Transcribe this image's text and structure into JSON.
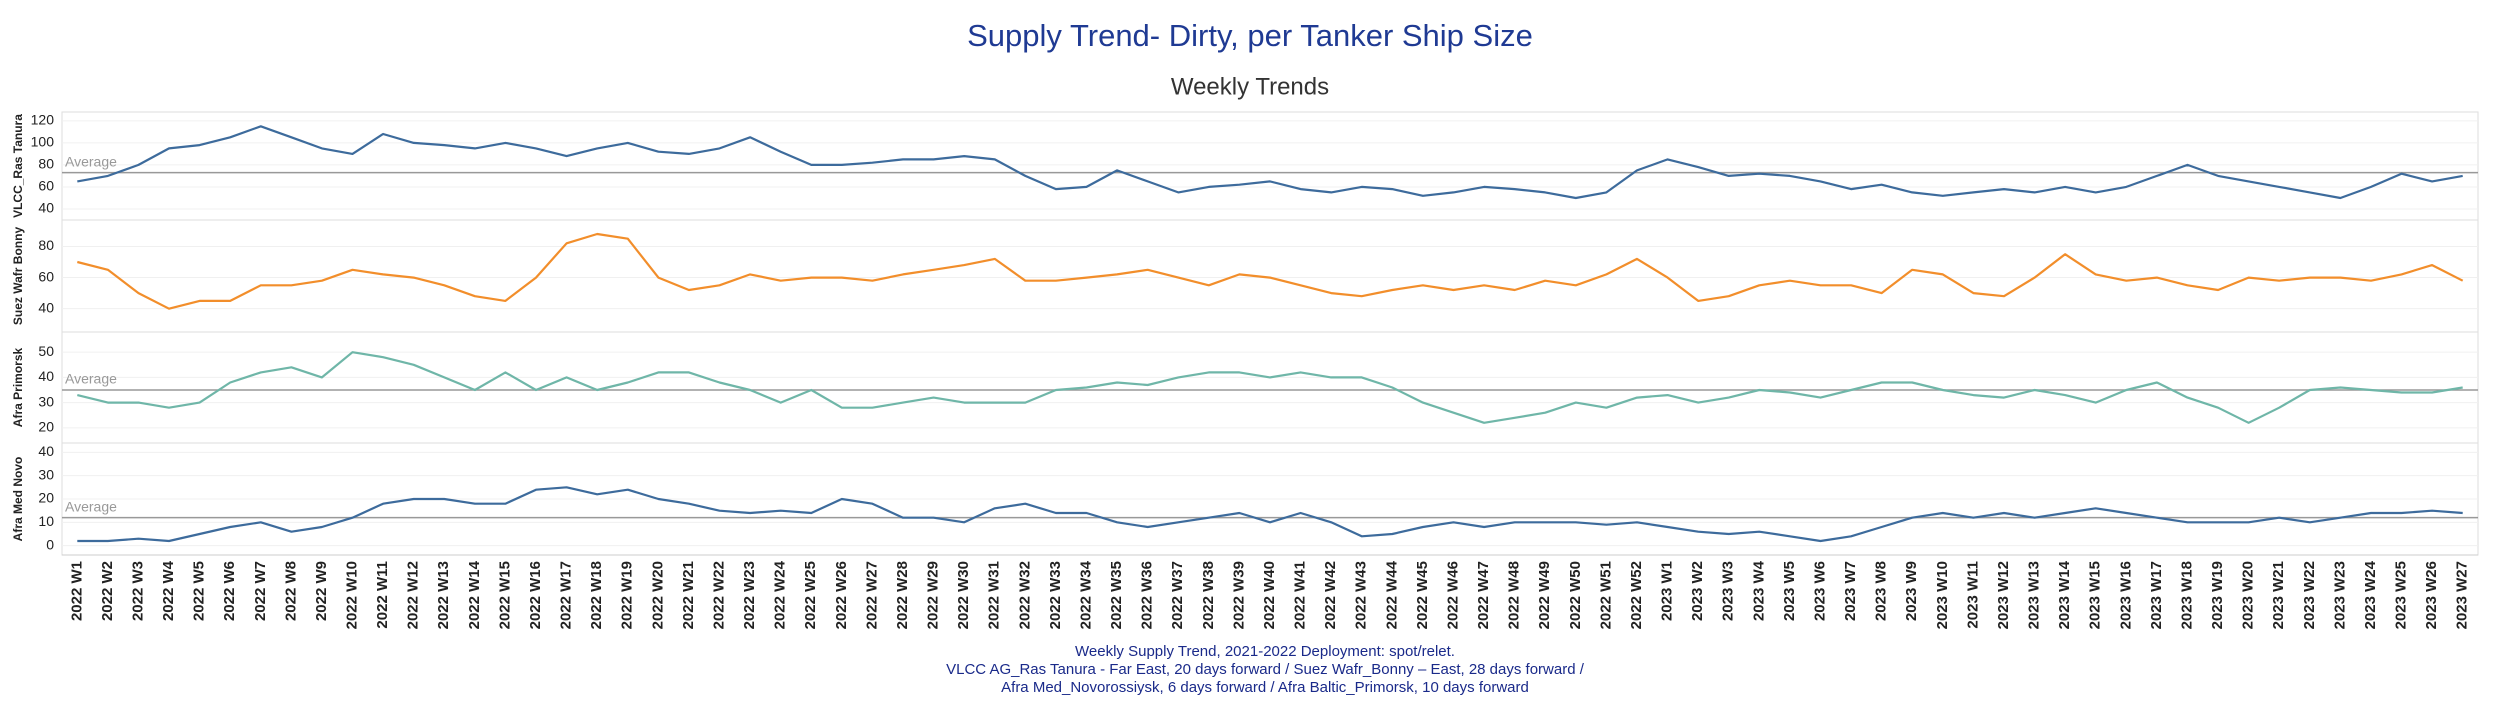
{
  "chart_data": {
    "type": "line",
    "title": "Supply Trend- Dirty, per Tanker Ship Size",
    "subtitle": "Weekly Trends",
    "caption": [
      "Weekly Supply Trend, 2021-2022 Deployment: spot/relet.",
      "VLCC AG_Ras Tanura - Far East, 20 days forward / Suez Wafr_Bonny – East, 28 days forward /",
      "Afra Med_Novorossiysk, 6 days forward / Afra Baltic_Primorsk, 10 days forward"
    ],
    "categories": [
      "2022 W1",
      "2022 W2",
      "2022 W3",
      "2022 W4",
      "2022 W5",
      "2022 W6",
      "2022 W7",
      "2022 W8",
      "2022 W9",
      "2022 W10",
      "2022 W11",
      "2022 W12",
      "2022 W13",
      "2022 W14",
      "2022 W15",
      "2022 W16",
      "2022 W17",
      "2022 W18",
      "2022 W19",
      "2022 W20",
      "2022 W21",
      "2022 W22",
      "2022 W23",
      "2022 W24",
      "2022 W25",
      "2022 W26",
      "2022 W27",
      "2022 W28",
      "2022 W29",
      "2022 W30",
      "2022 W31",
      "2022 W32",
      "2022 W33",
      "2022 W34",
      "2022 W35",
      "2022 W36",
      "2022 W37",
      "2022 W38",
      "2022 W39",
      "2022 W40",
      "2022 W41",
      "2022 W42",
      "2022 W43",
      "2022 W44",
      "2022 W45",
      "2022 W46",
      "2022 W47",
      "2022 W48",
      "2022 W49",
      "2022 W50",
      "2022 W51",
      "2022 W52",
      "2023 W1",
      "2023 W2",
      "2023 W3",
      "2023 W4",
      "2023 W5",
      "2023 W6",
      "2023 W7",
      "2023 W8",
      "2023 W9",
      "2023 W10",
      "2023 W11",
      "2023 W12",
      "2023 W13",
      "2023 W14",
      "2023 W15",
      "2023 W16",
      "2023 W17",
      "2023 W18",
      "2023 W19",
      "2023 W20",
      "2023 W21",
      "2023 W22",
      "2023 W23",
      "2023 W24",
      "2023 W25",
      "2023 W26",
      "2023 W27"
    ],
    "series": [
      {
        "name": "VLCC_Ras Tanura",
        "color": "#3d6b9c",
        "ylim": [
          30,
          128
        ],
        "yticks": [
          40,
          60,
          80,
          100,
          120
        ],
        "reference_line": {
          "label": "Average",
          "value": 73
        },
        "values": [
          65,
          70,
          80,
          95,
          98,
          105,
          115,
          105,
          95,
          90,
          108,
          100,
          98,
          95,
          100,
          95,
          88,
          95,
          100,
          92,
          90,
          95,
          105,
          92,
          80,
          80,
          82,
          85,
          85,
          88,
          85,
          70,
          58,
          60,
          75,
          65,
          55,
          60,
          62,
          65,
          58,
          55,
          60,
          58,
          52,
          55,
          60,
          58,
          55,
          50,
          55,
          75,
          85,
          78,
          70,
          72,
          70,
          65,
          58,
          62,
          55,
          52,
          55,
          58,
          55,
          60,
          55,
          60,
          70,
          80,
          70,
          65,
          60,
          55,
          50,
          60,
          72,
          65,
          70
        ]
      },
      {
        "name": "Suez Wafr Bonny",
        "color": "#f28e2b",
        "ylim": [
          25,
          97
        ],
        "yticks": [
          40,
          60,
          80
        ],
        "values": [
          70,
          65,
          50,
          40,
          45,
          45,
          55,
          55,
          58,
          65,
          62,
          60,
          55,
          48,
          45,
          60,
          82,
          88,
          85,
          60,
          52,
          55,
          62,
          58,
          60,
          60,
          58,
          62,
          65,
          68,
          72,
          58,
          58,
          60,
          62,
          65,
          60,
          55,
          62,
          60,
          55,
          50,
          48,
          52,
          55,
          52,
          55,
          52,
          58,
          55,
          62,
          72,
          60,
          45,
          48,
          55,
          58,
          55,
          55,
          50,
          65,
          62,
          50,
          48,
          60,
          75,
          62,
          58,
          60,
          55,
          52,
          60,
          58,
          60,
          60,
          58,
          62,
          68,
          58
        ]
      },
      {
        "name": "Afra Primorsk",
        "color": "#6fb6a8",
        "ylim": [
          14,
          58
        ],
        "yticks": [
          20,
          30,
          40,
          50
        ],
        "reference_line": {
          "label": "Average",
          "value": 35
        },
        "values": [
          33,
          30,
          30,
          28,
          30,
          38,
          42,
          44,
          40,
          50,
          48,
          45,
          40,
          35,
          42,
          35,
          40,
          35,
          38,
          42,
          42,
          38,
          35,
          30,
          35,
          28,
          28,
          30,
          32,
          30,
          30,
          30,
          35,
          36,
          38,
          37,
          40,
          42,
          42,
          40,
          42,
          40,
          40,
          36,
          30,
          26,
          22,
          24,
          26,
          30,
          28,
          32,
          33,
          30,
          32,
          35,
          34,
          32,
          35,
          38,
          38,
          35,
          33,
          32,
          35,
          33,
          30,
          35,
          38,
          32,
          28,
          22,
          28,
          35,
          36,
          35,
          34,
          34,
          36
        ]
      },
      {
        "name": "Afra Med Novo",
        "color": "#3d6b9c",
        "ylim": [
          -4,
          44
        ],
        "yticks": [
          0,
          10,
          20,
          30,
          40
        ],
        "reference_line": {
          "label": "Average",
          "value": 12
        },
        "values": [
          2,
          2,
          3,
          2,
          5,
          8,
          10,
          6,
          8,
          12,
          18,
          20,
          20,
          18,
          18,
          24,
          25,
          22,
          24,
          20,
          18,
          15,
          14,
          15,
          14,
          20,
          18,
          12,
          12,
          10,
          16,
          18,
          14,
          14,
          10,
          8,
          10,
          12,
          14,
          10,
          14,
          10,
          4,
          5,
          8,
          10,
          8,
          10,
          10,
          10,
          9,
          10,
          8,
          6,
          5,
          6,
          4,
          2,
          4,
          8,
          12,
          14,
          12,
          14,
          12,
          14,
          16,
          14,
          12,
          10,
          10,
          10,
          12,
          10,
          12,
          14,
          14,
          15,
          14
        ]
      }
    ]
  }
}
